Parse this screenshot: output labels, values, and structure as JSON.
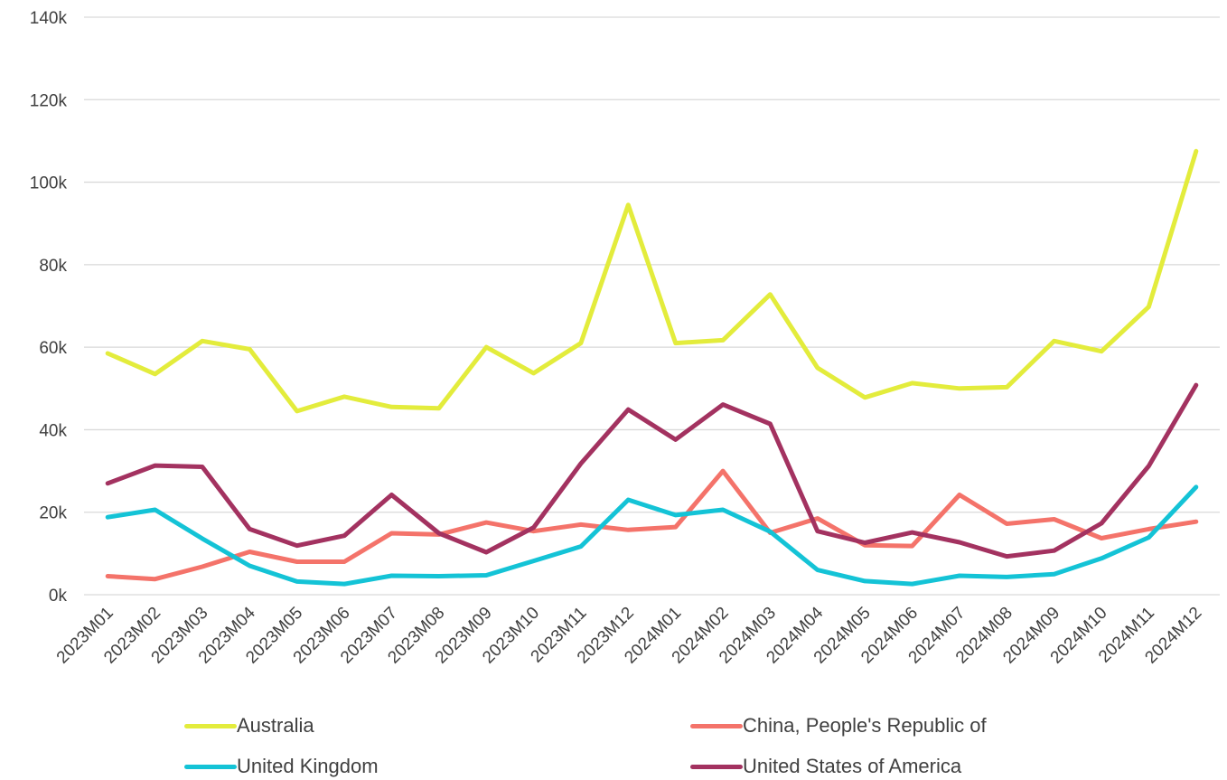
{
  "chart_data": {
    "type": "line",
    "categories": [
      "2023M01",
      "2023M02",
      "2023M03",
      "2023M04",
      "2023M05",
      "2023M06",
      "2023M07",
      "2023M08",
      "2023M09",
      "2023M10",
      "2023M11",
      "2023M12",
      "2024M01",
      "2024M02",
      "2024M03",
      "2024M04",
      "2024M05",
      "2024M06",
      "2024M07",
      "2024M08",
      "2024M09",
      "2024M10",
      "2024M11",
      "2024M12"
    ],
    "ylim": [
      0,
      140000
    ],
    "yticks": [
      0,
      20000,
      40000,
      60000,
      80000,
      100000,
      120000,
      140000
    ],
    "ytick_labels": [
      "0k",
      "20k",
      "40k",
      "60k",
      "80k",
      "100k",
      "120k",
      "140k"
    ],
    "grid": true,
    "legend_position": "bottom",
    "series": [
      {
        "name": "Australia",
        "color": "#e3ec3c",
        "values": [
          58500,
          53500,
          61500,
          59500,
          44500,
          48000,
          45500,
          45200,
          60000,
          53700,
          61000,
          94500,
          61000,
          61700,
          72800,
          55000,
          47800,
          51300,
          50000,
          50300,
          61500,
          59000,
          69800,
          107500
        ]
      },
      {
        "name": "China, People's Republic of",
        "color": "#f4736a",
        "values": [
          4500,
          3800,
          6800,
          10400,
          8000,
          8000,
          14900,
          14600,
          17500,
          15400,
          17000,
          15700,
          16400,
          30000,
          15000,
          18500,
          12000,
          11800,
          24200,
          17200,
          18300,
          13700,
          15900,
          17700
        ]
      },
      {
        "name": "United Kingdom",
        "color": "#14c3d6",
        "values": [
          18800,
          20600,
          13600,
          7000,
          3200,
          2600,
          4600,
          4500,
          4700,
          8200,
          11700,
          23000,
          19300,
          20600,
          15300,
          6000,
          3300,
          2600,
          4600,
          4300,
          5000,
          8800,
          13900,
          26100
        ]
      },
      {
        "name": "United States of America",
        "color": "#a33260",
        "values": [
          27000,
          31300,
          31000,
          15900,
          11900,
          14300,
          24200,
          14900,
          10300,
          16300,
          31800,
          44900,
          37600,
          46100,
          41400,
          15400,
          12600,
          15100,
          12700,
          9300,
          10700,
          17300,
          31200,
          50800
        ]
      }
    ]
  }
}
